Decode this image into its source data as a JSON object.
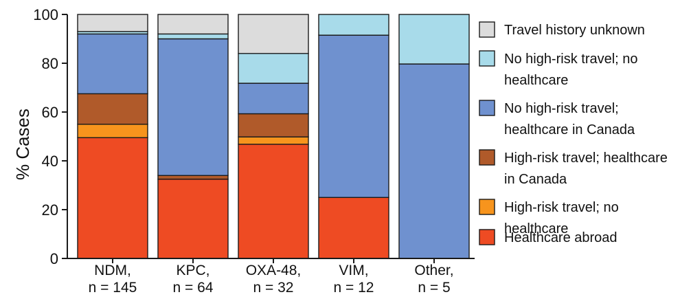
{
  "chart_data": {
    "type": "bar",
    "stacked": true,
    "title": "",
    "xlabel": "",
    "ylabel": "% Cases",
    "ylim": [
      0,
      100
    ],
    "yticks": [
      "0",
      "20",
      "40",
      "60",
      "80",
      "100"
    ],
    "grid": false,
    "legend_position": "right",
    "categories": [
      {
        "lines": [
          "NDM,",
          "n = 145"
        ]
      },
      {
        "lines": [
          "KPC,",
          "n = 64"
        ]
      },
      {
        "lines": [
          "OXA-48,",
          "n = 32"
        ]
      },
      {
        "lines": [
          "VIM,",
          "n = 12"
        ]
      },
      {
        "lines": [
          "Other,",
          "n = 5"
        ]
      }
    ],
    "series": [
      {
        "name": "Healthcare abroad",
        "label_lines": [
          "Healthcare abroad"
        ],
        "color": "#ee4b23",
        "values": [
          49.5,
          32.5,
          46.8,
          25.0,
          0
        ]
      },
      {
        "name": "High-risk travel; no healthcare",
        "label_lines": [
          "High-risk travel; no",
          "healthcare"
        ],
        "color": "#f7941d",
        "values": [
          5.5,
          0,
          3.0,
          0,
          0
        ]
      },
      {
        "name": "High-risk travel; healthcare in Canada",
        "label_lines": [
          "High-risk travel; healthcare",
          "in Canada"
        ],
        "color": "#b05a2a",
        "values": [
          12.5,
          1.5,
          9.5,
          0,
          0
        ]
      },
      {
        "name": "No high-risk travel; healthcare in Canada",
        "label_lines": [
          "No high-risk travel;",
          "healthcare in Canada"
        ],
        "color": "#6f91cf",
        "values": [
          24.5,
          56.0,
          12.5,
          66.5,
          79.7
        ]
      },
      {
        "name": "No high-risk travel; no healthcare",
        "label_lines": [
          "No high-risk travel; no",
          "healthcare"
        ],
        "color": "#a8dbea",
        "values": [
          1.0,
          2.0,
          12.2,
          8.5,
          20.3
        ]
      },
      {
        "name": "Travel history unknown",
        "label_lines": [
          "Travel history unknown"
        ],
        "color": "#dcdcdc",
        "values": [
          7.0,
          8.0,
          16.0,
          0,
          0
        ]
      }
    ]
  }
}
